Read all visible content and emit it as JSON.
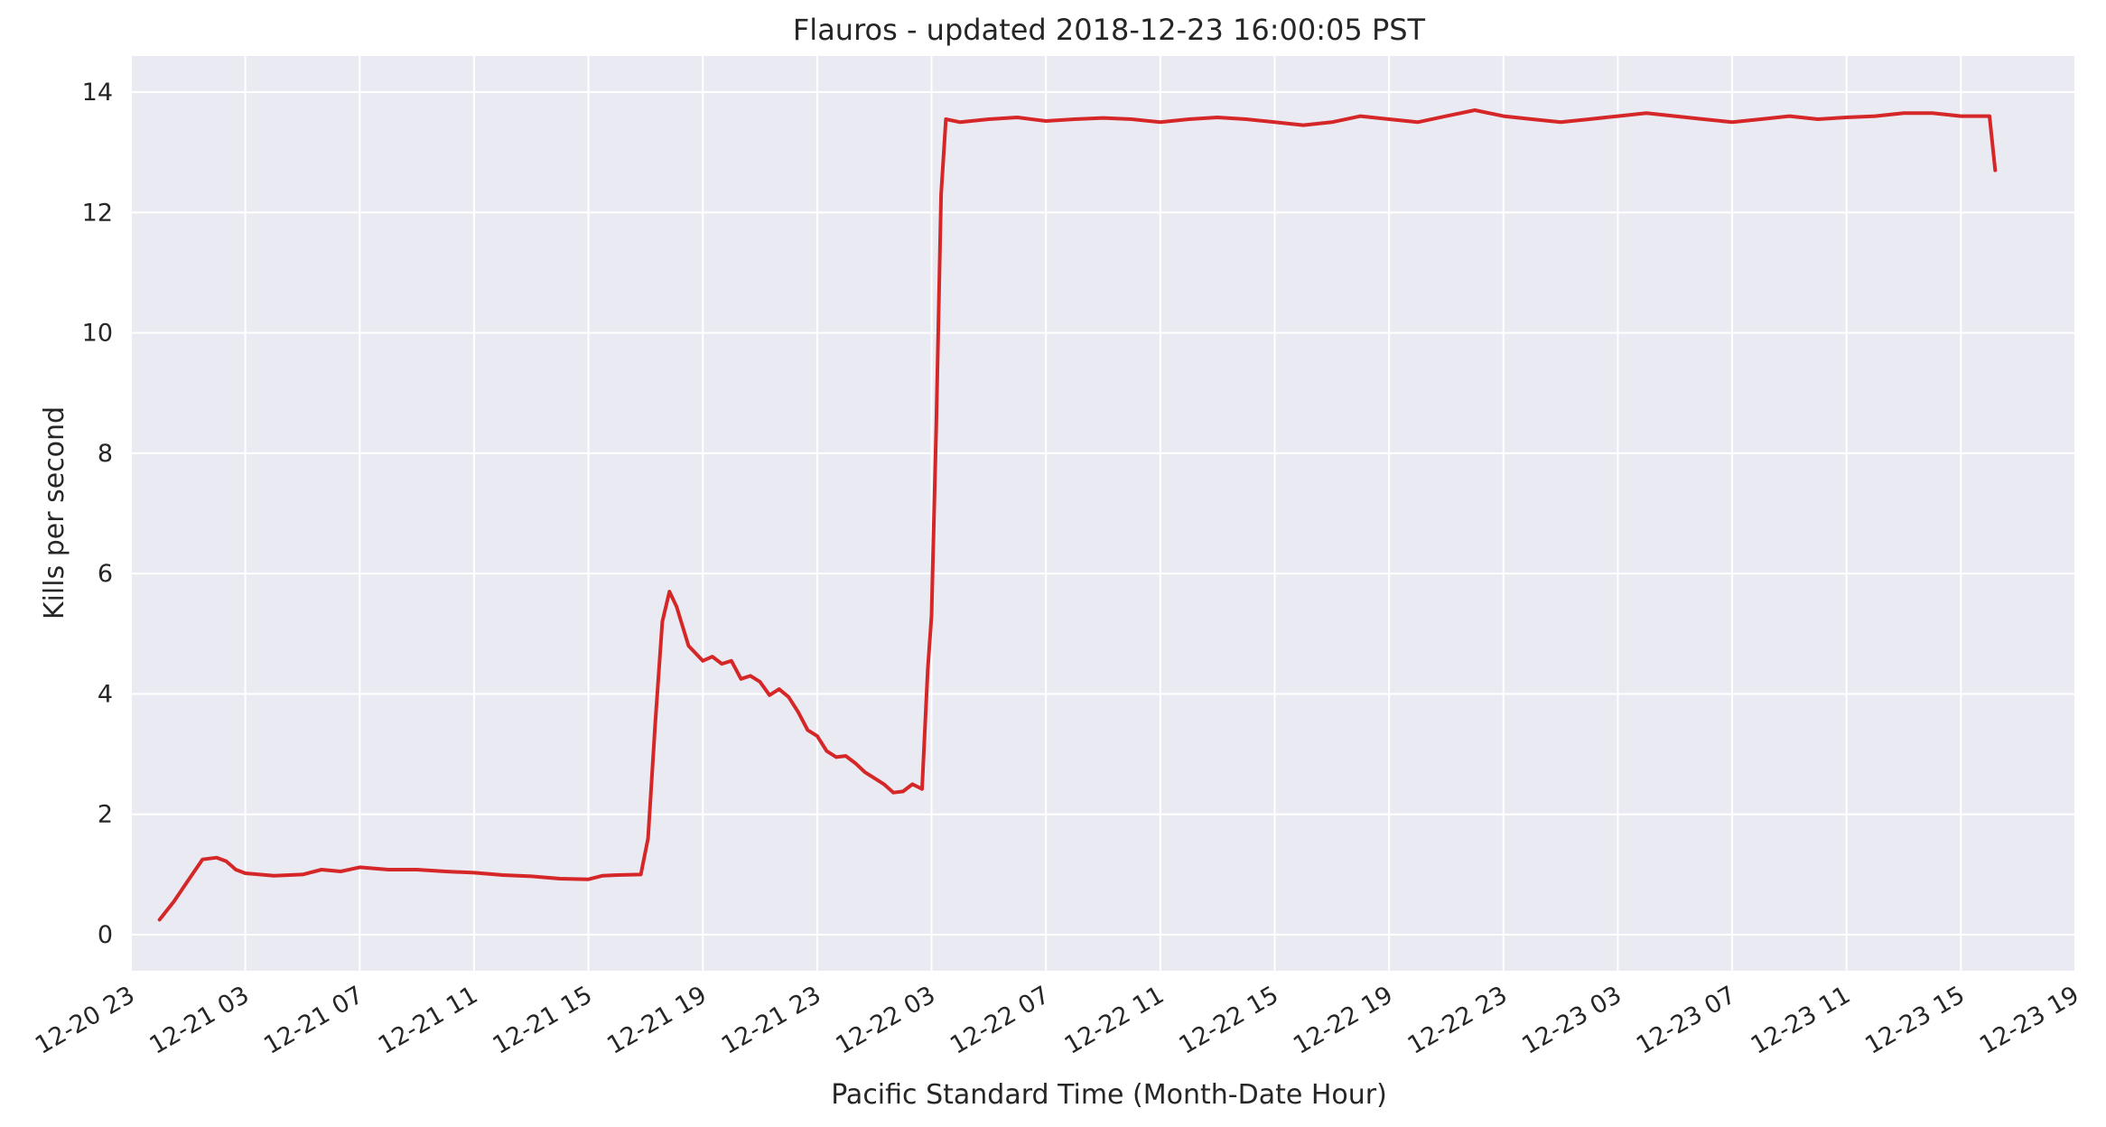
{
  "chart_data": {
    "type": "line",
    "title": "Flauros - updated 2018-12-23 16:00:05 PST",
    "xlabel": "Pacific Standard Time (Month-Date Hour)",
    "ylabel": "Kills per second",
    "x_unit": "hours",
    "xlim": [
      "2018-12-20 23:00",
      "2018-12-23 19:00"
    ],
    "ylim": [
      -0.6,
      14.6
    ],
    "x_tick_values": [
      "2018-12-20 23:00",
      "2018-12-21 03:00",
      "2018-12-21 07:00",
      "2018-12-21 11:00",
      "2018-12-21 15:00",
      "2018-12-21 19:00",
      "2018-12-21 23:00",
      "2018-12-22 03:00",
      "2018-12-22 07:00",
      "2018-12-22 11:00",
      "2018-12-22 15:00",
      "2018-12-22 19:00",
      "2018-12-22 23:00",
      "2018-12-23 03:00",
      "2018-12-23 07:00",
      "2018-12-23 11:00",
      "2018-12-23 15:00",
      "2018-12-23 19:00"
    ],
    "x_ticks": [
      "12-20 23",
      "12-21 03",
      "12-21 07",
      "12-21 11",
      "12-21 15",
      "12-21 19",
      "12-21 23",
      "12-22 03",
      "12-22 07",
      "12-22 11",
      "12-22 15",
      "12-22 19",
      "12-22 23",
      "12-23 03",
      "12-23 07",
      "12-23 11",
      "12-23 15",
      "12-23 19"
    ],
    "y_ticks": [
      0,
      2,
      4,
      6,
      8,
      10,
      12,
      14
    ],
    "grid": true,
    "legend": "none",
    "series": [
      {
        "color": "#d62728",
        "points": [
          [
            "2018-12-21 00:00",
            0.25
          ],
          [
            "2018-12-21 00:30",
            0.55
          ],
          [
            "2018-12-21 01:00",
            0.9
          ],
          [
            "2018-12-21 01:30",
            1.25
          ],
          [
            "2018-12-21 02:00",
            1.28
          ],
          [
            "2018-12-21 02:20",
            1.22
          ],
          [
            "2018-12-21 02:40",
            1.08
          ],
          [
            "2018-12-21 03:00",
            1.02
          ],
          [
            "2018-12-21 04:00",
            0.98
          ],
          [
            "2018-12-21 05:00",
            1.0
          ],
          [
            "2018-12-21 05:40",
            1.08
          ],
          [
            "2018-12-21 06:20",
            1.05
          ],
          [
            "2018-12-21 07:00",
            1.12
          ],
          [
            "2018-12-21 08:00",
            1.08
          ],
          [
            "2018-12-21 09:00",
            1.08
          ],
          [
            "2018-12-21 10:00",
            1.05
          ],
          [
            "2018-12-21 11:00",
            1.03
          ],
          [
            "2018-12-21 12:00",
            0.99
          ],
          [
            "2018-12-21 13:00",
            0.97
          ],
          [
            "2018-12-21 14:00",
            0.93
          ],
          [
            "2018-12-21 15:00",
            0.92
          ],
          [
            "2018-12-21 15:30",
            0.98
          ],
          [
            "2018-12-21 16:00",
            0.99
          ],
          [
            "2018-12-21 16:50",
            1.0
          ],
          [
            "2018-12-21 17:05",
            1.6
          ],
          [
            "2018-12-21 17:20",
            3.5
          ],
          [
            "2018-12-21 17:35",
            5.2
          ],
          [
            "2018-12-21 17:50",
            5.7
          ],
          [
            "2018-12-21 18:05",
            5.45
          ],
          [
            "2018-12-21 18:30",
            4.8
          ],
          [
            "2018-12-21 19:00",
            4.55
          ],
          [
            "2018-12-21 19:20",
            4.62
          ],
          [
            "2018-12-21 19:40",
            4.5
          ],
          [
            "2018-12-21 20:00",
            4.55
          ],
          [
            "2018-12-21 20:20",
            4.25
          ],
          [
            "2018-12-21 20:40",
            4.3
          ],
          [
            "2018-12-21 21:00",
            4.2
          ],
          [
            "2018-12-21 21:20",
            3.98
          ],
          [
            "2018-12-21 21:40",
            4.08
          ],
          [
            "2018-12-21 22:00",
            3.95
          ],
          [
            "2018-12-21 22:20",
            3.7
          ],
          [
            "2018-12-21 22:40",
            3.4
          ],
          [
            "2018-12-21 23:00",
            3.3
          ],
          [
            "2018-12-21 23:20",
            3.05
          ],
          [
            "2018-12-21 23:40",
            2.95
          ],
          [
            "2018-12-22 00:00",
            2.97
          ],
          [
            "2018-12-22 00:20",
            2.85
          ],
          [
            "2018-12-22 00:40",
            2.7
          ],
          [
            "2018-12-22 01:00",
            2.6
          ],
          [
            "2018-12-22 01:20",
            2.5
          ],
          [
            "2018-12-22 01:40",
            2.36
          ],
          [
            "2018-12-22 02:00",
            2.38
          ],
          [
            "2018-12-22 02:20",
            2.5
          ],
          [
            "2018-12-22 02:40",
            2.42
          ],
          [
            "2018-12-22 02:52",
            4.4
          ],
          [
            "2018-12-22 03:00",
            5.3
          ],
          [
            "2018-12-22 03:10",
            8.5
          ],
          [
            "2018-12-22 03:20",
            12.3
          ],
          [
            "2018-12-22 03:30",
            13.55
          ],
          [
            "2018-12-22 04:00",
            13.5
          ],
          [
            "2018-12-22 05:00",
            13.55
          ],
          [
            "2018-12-22 06:00",
            13.58
          ],
          [
            "2018-12-22 07:00",
            13.52
          ],
          [
            "2018-12-22 08:00",
            13.55
          ],
          [
            "2018-12-22 09:00",
            13.57
          ],
          [
            "2018-12-22 10:00",
            13.55
          ],
          [
            "2018-12-22 11:00",
            13.5
          ],
          [
            "2018-12-22 12:00",
            13.55
          ],
          [
            "2018-12-22 13:00",
            13.58
          ],
          [
            "2018-12-22 14:00",
            13.55
          ],
          [
            "2018-12-22 15:00",
            13.5
          ],
          [
            "2018-12-22 16:00",
            13.45
          ],
          [
            "2018-12-22 17:00",
            13.5
          ],
          [
            "2018-12-22 18:00",
            13.6
          ],
          [
            "2018-12-22 19:00",
            13.55
          ],
          [
            "2018-12-22 20:00",
            13.5
          ],
          [
            "2018-12-22 21:00",
            13.6
          ],
          [
            "2018-12-22 22:00",
            13.7
          ],
          [
            "2018-12-22 23:00",
            13.6
          ],
          [
            "2018-12-23 00:00",
            13.55
          ],
          [
            "2018-12-23 01:00",
            13.5
          ],
          [
            "2018-12-23 02:00",
            13.55
          ],
          [
            "2018-12-23 03:00",
            13.6
          ],
          [
            "2018-12-23 04:00",
            13.65
          ],
          [
            "2018-12-23 05:00",
            13.6
          ],
          [
            "2018-12-23 06:00",
            13.55
          ],
          [
            "2018-12-23 07:00",
            13.5
          ],
          [
            "2018-12-23 08:00",
            13.55
          ],
          [
            "2018-12-23 09:00",
            13.6
          ],
          [
            "2018-12-23 10:00",
            13.55
          ],
          [
            "2018-12-23 11:00",
            13.58
          ],
          [
            "2018-12-23 12:00",
            13.6
          ],
          [
            "2018-12-23 13:00",
            13.65
          ],
          [
            "2018-12-23 14:00",
            13.65
          ],
          [
            "2018-12-23 15:00",
            13.6
          ],
          [
            "2018-12-23 16:00",
            13.6
          ],
          [
            "2018-12-23 16:12",
            12.7
          ]
        ]
      }
    ]
  }
}
